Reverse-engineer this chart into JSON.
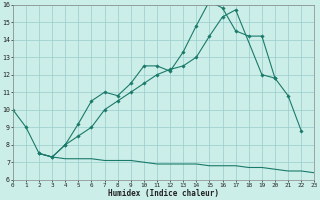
{
  "xlabel": "Humidex (Indice chaleur)",
  "bg_color": "#cceee8",
  "grid_color": "#99cccc",
  "line_color": "#1a7a6a",
  "xlim": [
    0,
    23
  ],
  "ylim": [
    6,
    16
  ],
  "xticks": [
    0,
    1,
    2,
    3,
    4,
    5,
    6,
    7,
    8,
    9,
    10,
    11,
    12,
    13,
    14,
    15,
    16,
    17,
    18,
    19,
    20,
    21,
    22,
    23
  ],
  "yticks": [
    6,
    7,
    8,
    9,
    10,
    11,
    12,
    13,
    14,
    15,
    16
  ],
  "series1_x": [
    0,
    1,
    2,
    3,
    4,
    5,
    6,
    7,
    8,
    9,
    10,
    11,
    12,
    13,
    14,
    15,
    16,
    17,
    18,
    19,
    20,
    21,
    22
  ],
  "series1_y": [
    10.0,
    9.0,
    7.5,
    7.3,
    8.0,
    9.2,
    10.5,
    11.0,
    10.8,
    11.5,
    12.5,
    12.5,
    12.2,
    13.3,
    14.8,
    16.2,
    15.8,
    14.5,
    14.2,
    14.2,
    11.8,
    10.8,
    8.8
  ],
  "series2_x": [
    2,
    3,
    4,
    5,
    6,
    7,
    8,
    9,
    10,
    11,
    12,
    13,
    14,
    15,
    16,
    17,
    19,
    20
  ],
  "series2_y": [
    7.5,
    7.3,
    8.0,
    8.5,
    9.0,
    10.0,
    10.5,
    11.0,
    11.5,
    12.0,
    12.3,
    12.5,
    13.0,
    14.2,
    15.3,
    15.7,
    12.0,
    11.8
  ],
  "series3_x": [
    2,
    3,
    4,
    5,
    6,
    7,
    8,
    9,
    10,
    11,
    12,
    13,
    14,
    15,
    16,
    17,
    18,
    19,
    20,
    21,
    22,
    23
  ],
  "series3_y": [
    7.5,
    7.3,
    7.2,
    7.2,
    7.2,
    7.1,
    7.1,
    7.1,
    7.0,
    6.9,
    6.9,
    6.9,
    6.9,
    6.8,
    6.8,
    6.8,
    6.7,
    6.7,
    6.6,
    6.5,
    6.5,
    6.4
  ]
}
